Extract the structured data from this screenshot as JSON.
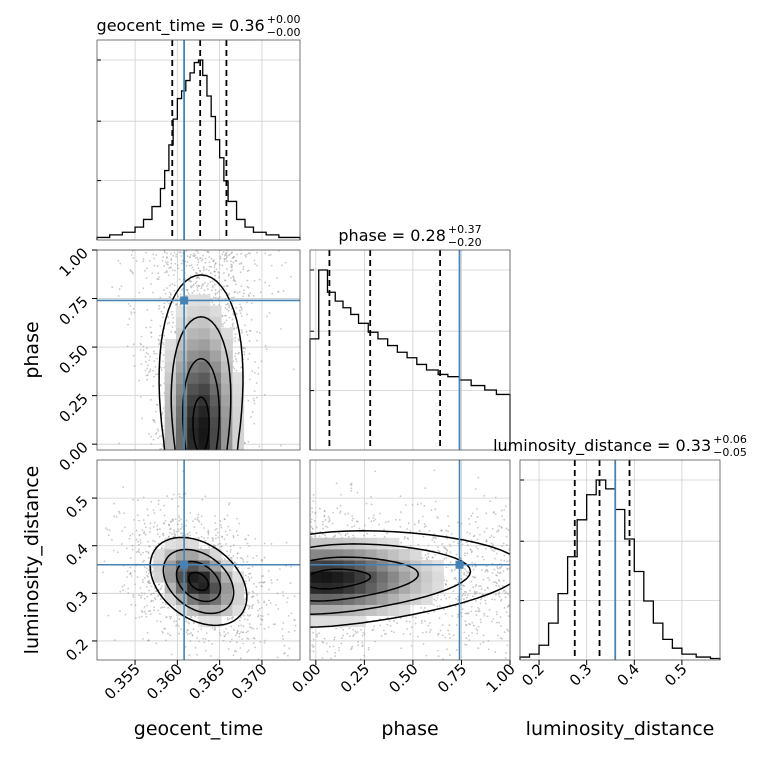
{
  "chart_data": {
    "type": "corner",
    "truth_color": "#4682b4",
    "titles": [
      {
        "name": "geocent_time",
        "median": "0.36",
        "plus": "+0.00",
        "minus": "−0.00"
      },
      {
        "name": "phase",
        "median": "0.28",
        "plus": "+0.37",
        "minus": "−0.20"
      },
      {
        "name": "luminosity_distance",
        "median": "0.33",
        "plus": "+0.06",
        "minus": "−0.05"
      }
    ],
    "axes": [
      {
        "label": "geocent_time",
        "range": [
          0.3505,
          0.3745
        ],
        "ticks": [
          "0.355",
          "0.360",
          "0.365",
          "0.370"
        ],
        "truth": 0.3608,
        "quantiles": [
          0.3594,
          0.3627,
          0.3658
        ]
      },
      {
        "label": "phase",
        "range": [
          -0.03,
          1.0
        ],
        "ticks": [
          "0.00",
          "0.25",
          "0.50",
          "0.75",
          "1.00"
        ],
        "truth": 0.74,
        "quantiles": [
          0.07,
          0.28,
          0.64
        ]
      },
      {
        "label": "luminosity_distance",
        "range": [
          0.16,
          0.58
        ],
        "ticks": [
          "0.2",
          "0.3",
          "0.4",
          "0.5"
        ],
        "truth": 0.36,
        "quantiles": [
          0.275,
          0.327,
          0.39
        ]
      }
    ],
    "histograms": [
      {
        "axis": 0,
        "bins": [
          0.3505,
          0.352,
          0.3535,
          0.355,
          0.356,
          0.357,
          0.358,
          0.3585,
          0.359,
          0.3595,
          0.36,
          0.3605,
          0.361,
          0.3615,
          0.362,
          0.3625,
          0.363,
          0.3635,
          0.364,
          0.3645,
          0.365,
          0.3655,
          0.366,
          0.367,
          0.368,
          0.369,
          0.3705,
          0.372,
          0.3745
        ],
        "counts": [
          1,
          2,
          3,
          5,
          8,
          13,
          20,
          27,
          37,
          47,
          55,
          58,
          62,
          65,
          69,
          70,
          64,
          56,
          48,
          39,
          32,
          23,
          15,
          8,
          5,
          3,
          2,
          1
        ]
      },
      {
        "axis": 1,
        "bins": [
          -0.03,
          0.015,
          0.06,
          0.1,
          0.14,
          0.18,
          0.22,
          0.27,
          0.32,
          0.37,
          0.42,
          0.47,
          0.52,
          0.57,
          0.63,
          0.68,
          0.74,
          0.8,
          0.87,
          0.93,
          1.0
        ],
        "counts": [
          100,
          162,
          142,
          134,
          128,
          122,
          114,
          106,
          100,
          94,
          88,
          83,
          77,
          72,
          68,
          66,
          63,
          58,
          54,
          50
        ]
      },
      {
        "axis": 2,
        "bins": [
          0.16,
          0.18,
          0.2,
          0.22,
          0.24,
          0.26,
          0.28,
          0.3,
          0.32,
          0.34,
          0.36,
          0.38,
          0.4,
          0.42,
          0.44,
          0.46,
          0.48,
          0.5,
          0.53,
          0.56,
          0.58
        ],
        "counts": [
          2,
          4,
          10,
          25,
          45,
          70,
          95,
          112,
          122,
          116,
          102,
          82,
          60,
          40,
          25,
          14,
          8,
          4,
          2,
          1
        ]
      }
    ],
    "joints": [
      {
        "x_axis": 0,
        "y_axis": 1,
        "center": [
          0.3628,
          0.1
        ],
        "spread": [
          0.0024,
          0.3
        ],
        "corr": 0.0
      },
      {
        "x_axis": 0,
        "y_axis": 2,
        "center": [
          0.3625,
          0.325
        ],
        "spread": [
          0.0026,
          0.042
        ],
        "corr": -0.35
      },
      {
        "x_axis": 1,
        "y_axis": 2,
        "center": [
          0.2,
          0.33
        ],
        "spread": [
          0.26,
          0.045
        ],
        "corr": 0.25
      }
    ]
  }
}
